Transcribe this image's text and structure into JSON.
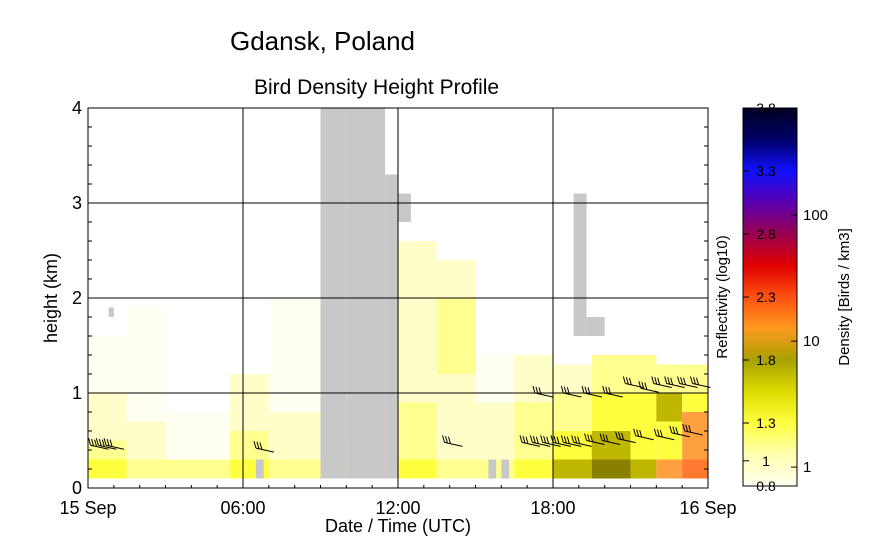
{
  "chart_data": {
    "type": "heatmap",
    "title": "Gdansk, Poland",
    "subtitle": "Bird Density Height Profile",
    "xlabel": "Date / Time (UTC)",
    "ylabel": "height (km)",
    "xlim": [
      0,
      24
    ],
    "ylim": [
      0,
      4
    ],
    "x_ticks": [
      {
        "v": 0,
        "label": "15 Sep"
      },
      {
        "v": 6,
        "label": "06:00"
      },
      {
        "v": 12,
        "label": "12:00"
      },
      {
        "v": 18,
        "label": "18:00"
      },
      {
        "v": 24,
        "label": "16 Sep"
      }
    ],
    "y_ticks": [
      {
        "v": 0,
        "label": "0"
      },
      {
        "v": 1,
        "label": "1"
      },
      {
        "v": 2,
        "label": "2"
      },
      {
        "v": 3,
        "label": "3"
      },
      {
        "v": 4,
        "label": "4"
      }
    ],
    "grid": true,
    "cell_hours": 0.25,
    "cell_km": 0.2,
    "colorbar": {
      "left_label": "Reflectivity (log10)",
      "right_label": "Density [Birds / km3]",
      "left_ticks": [
        "0.8",
        "1",
        "1.3",
        "1.8",
        "2.3",
        "2.8",
        "3.3",
        "3.8"
      ],
      "right_ticks": [
        "1",
        "10",
        "100"
      ],
      "gradient": [
        "#fffff0",
        "#ffffb0",
        "#ffff40",
        "#dcdc00",
        "#a8a000",
        "#ff9a20",
        "#ff5010",
        "#e00000",
        "#9a0050",
        "#5a00b0",
        "#1010ff",
        "#000066",
        "#000022"
      ]
    },
    "colors": {
      "no_data": "#c8c8c8",
      "very_low": "#fffff2",
      "low": "#fffec8",
      "light_yellow": "#ffff90",
      "yellow": "#ffff40",
      "olive": "#c0b800",
      "dark_olive": "#8a8000",
      "orange": "#ffa040",
      "orange_red": "#ff7a30"
    },
    "density_columns": [
      {
        "t": 0.0,
        "dt": 1.5,
        "cells": [
          [
            0.1,
            0.3,
            "yellow"
          ],
          [
            0.3,
            0.5,
            "light_yellow"
          ],
          [
            0.5,
            1.0,
            "low"
          ],
          [
            1.0,
            1.6,
            "very_low"
          ]
        ]
      },
      {
        "t": 1.5,
        "dt": 1.5,
        "cells": [
          [
            0.1,
            0.3,
            "light_yellow"
          ],
          [
            0.3,
            0.7,
            "low"
          ],
          [
            0.7,
            1.9,
            "very_low"
          ]
        ]
      },
      {
        "t": 3.0,
        "dt": 2.5,
        "cells": [
          [
            0.1,
            0.3,
            "light_yellow"
          ],
          [
            0.3,
            0.8,
            "very_low"
          ]
        ]
      },
      {
        "t": 5.5,
        "dt": 1.5,
        "cells": [
          [
            0.1,
            0.3,
            "yellow"
          ],
          [
            0.3,
            0.6,
            "light_yellow"
          ],
          [
            0.6,
            1.2,
            "low"
          ]
        ]
      },
      {
        "t": 7.0,
        "dt": 2.0,
        "cells": [
          [
            0.1,
            0.3,
            "light_yellow"
          ],
          [
            0.3,
            0.8,
            "low"
          ],
          [
            0.8,
            2.0,
            "very_low"
          ]
        ]
      },
      {
        "t": 9.0,
        "dt": 3.5,
        "cells": [
          [
            0.1,
            0.3,
            "light_yellow"
          ],
          [
            0.3,
            0.5,
            "low"
          ]
        ]
      },
      {
        "t": 12.0,
        "dt": 1.5,
        "cells": [
          [
            0.1,
            0.3,
            "yellow"
          ],
          [
            0.3,
            0.9,
            "light_yellow"
          ],
          [
            0.9,
            2.6,
            "low"
          ]
        ]
      },
      {
        "t": 13.5,
        "dt": 1.5,
        "cells": [
          [
            0.1,
            0.3,
            "light_yellow"
          ],
          [
            0.3,
            1.2,
            "low"
          ],
          [
            1.2,
            2.0,
            "light_yellow"
          ],
          [
            2.0,
            2.4,
            "low"
          ]
        ]
      },
      {
        "t": 15.0,
        "dt": 1.5,
        "cells": [
          [
            0.1,
            0.3,
            "light_yellow"
          ],
          [
            0.3,
            0.9,
            "low"
          ],
          [
            0.9,
            1.4,
            "very_low"
          ]
        ]
      },
      {
        "t": 16.5,
        "dt": 1.5,
        "cells": [
          [
            0.1,
            0.3,
            "yellow"
          ],
          [
            0.3,
            0.9,
            "light_yellow"
          ],
          [
            0.9,
            1.4,
            "low"
          ]
        ]
      },
      {
        "t": 18.0,
        "dt": 1.5,
        "cells": [
          [
            0.1,
            0.3,
            "olive"
          ],
          [
            0.3,
            0.6,
            "yellow"
          ],
          [
            0.6,
            1.0,
            "light_yellow"
          ],
          [
            1.0,
            1.3,
            "low"
          ]
        ]
      },
      {
        "t": 19.5,
        "dt": 1.5,
        "cells": [
          [
            0.1,
            0.3,
            "dark_olive"
          ],
          [
            0.3,
            0.6,
            "olive"
          ],
          [
            0.6,
            1.0,
            "yellow"
          ],
          [
            1.0,
            1.4,
            "light_yellow"
          ]
        ]
      },
      {
        "t": 21.0,
        "dt": 1.0,
        "cells": [
          [
            0.1,
            0.3,
            "olive"
          ],
          [
            0.3,
            0.6,
            "yellow"
          ],
          [
            0.6,
            1.0,
            "yellow"
          ],
          [
            1.0,
            1.4,
            "light_yellow"
          ]
        ]
      },
      {
        "t": 22.0,
        "dt": 1.0,
        "cells": [
          [
            0.1,
            0.3,
            "orange"
          ],
          [
            0.3,
            0.7,
            "yellow"
          ],
          [
            0.7,
            1.0,
            "olive"
          ],
          [
            1.0,
            1.3,
            "light_yellow"
          ]
        ]
      },
      {
        "t": 23.0,
        "dt": 1.0,
        "cells": [
          [
            0.1,
            0.3,
            "orange_red"
          ],
          [
            0.3,
            0.8,
            "orange"
          ],
          [
            0.8,
            1.0,
            "yellow"
          ],
          [
            1.0,
            1.3,
            "light_yellow"
          ]
        ]
      }
    ],
    "no_data_regions": [
      {
        "t0": 9.0,
        "t1": 10.0,
        "h0": 0.1,
        "h1": 4.0
      },
      {
        "t0": 10.0,
        "t1": 11.5,
        "h0": 0.1,
        "h1": 4.0
      },
      {
        "t0": 11.5,
        "t1": 12.0,
        "h0": 0.1,
        "h1": 3.3
      },
      {
        "t0": 12.0,
        "t1": 12.5,
        "h0": 2.8,
        "h1": 3.1
      },
      {
        "t0": 18.8,
        "t1": 19.3,
        "h0": 1.6,
        "h1": 3.1
      },
      {
        "t0": 19.3,
        "t1": 20.0,
        "h0": 1.6,
        "h1": 1.8
      },
      {
        "t0": 0.8,
        "t1": 1.0,
        "h0": 1.8,
        "h1": 1.9
      },
      {
        "t0": 6.5,
        "t1": 6.8,
        "h0": 0.1,
        "h1": 0.3
      },
      {
        "t0": 15.5,
        "t1": 15.8,
        "h0": 0.1,
        "h1": 0.3
      },
      {
        "t0": 16.0,
        "t1": 16.3,
        "h0": 0.1,
        "h1": 0.3
      }
    ],
    "wind_barbs": [
      {
        "t": 0.1,
        "h": 0.45
      },
      {
        "t": 0.4,
        "h": 0.45
      },
      {
        "t": 0.7,
        "h": 0.45
      },
      {
        "t": 6.5,
        "h": 0.42
      },
      {
        "t": 13.8,
        "h": 0.48
      },
      {
        "t": 16.8,
        "h": 0.48
      },
      {
        "t": 17.2,
        "h": 0.48
      },
      {
        "t": 17.6,
        "h": 0.48
      },
      {
        "t": 18.0,
        "h": 0.48
      },
      {
        "t": 18.4,
        "h": 0.48
      },
      {
        "t": 18.8,
        "h": 0.48
      },
      {
        "t": 19.3,
        "h": 0.5
      },
      {
        "t": 19.9,
        "h": 0.5
      },
      {
        "t": 20.5,
        "h": 0.52
      },
      {
        "t": 21.2,
        "h": 0.55
      },
      {
        "t": 22.0,
        "h": 0.55
      },
      {
        "t": 22.6,
        "h": 0.58
      },
      {
        "t": 23.1,
        "h": 0.6
      },
      {
        "t": 17.3,
        "h": 1.0
      },
      {
        "t": 18.4,
        "h": 1.0
      },
      {
        "t": 19.2,
        "h": 1.0
      },
      {
        "t": 20.0,
        "h": 1.0
      },
      {
        "t": 20.8,
        "h": 1.1
      },
      {
        "t": 21.4,
        "h": 1.05
      },
      {
        "t": 21.9,
        "h": 1.1
      },
      {
        "t": 22.4,
        "h": 1.1
      },
      {
        "t": 22.9,
        "h": 1.1
      },
      {
        "t": 23.4,
        "h": 1.1
      }
    ]
  }
}
